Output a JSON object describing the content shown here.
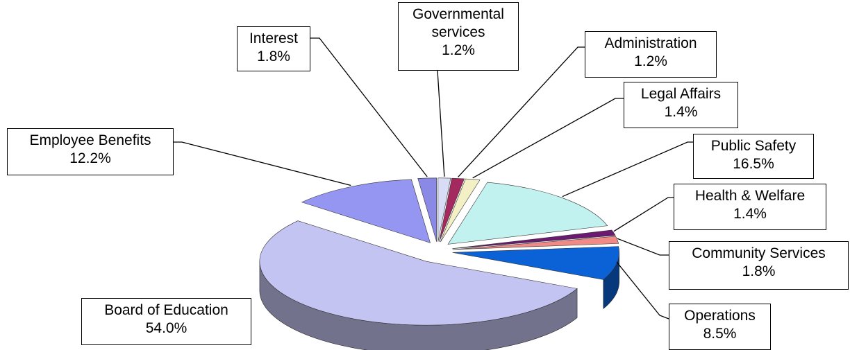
{
  "chart_data": {
    "type": "pie",
    "categories": [
      "Governmental services",
      "Administration",
      "Legal Affairs",
      "Public Safety",
      "Health & Welfare",
      "Community Services",
      "Operations",
      "Board of Education",
      "Employee Benefits",
      "Interest"
    ],
    "values": [
      1.2,
      1.2,
      1.4,
      16.5,
      1.4,
      1.8,
      8.5,
      54.0,
      12.2,
      1.8
    ],
    "value_labels": [
      "1.2%",
      "1.2%",
      "1.4%",
      "16.5%",
      "1.4%",
      "1.8%",
      "8.5%",
      "54.0%",
      "12.2%",
      "1.8%"
    ],
    "colors": [
      "#d8dcf4",
      "#a3295e",
      "#f2f0c4",
      "#c2f2f0",
      "#6b1a72",
      "#f08a86",
      "#0a62d6",
      "#c4c4f2",
      "#9496f2",
      "#8a8ae6"
    ]
  }
}
